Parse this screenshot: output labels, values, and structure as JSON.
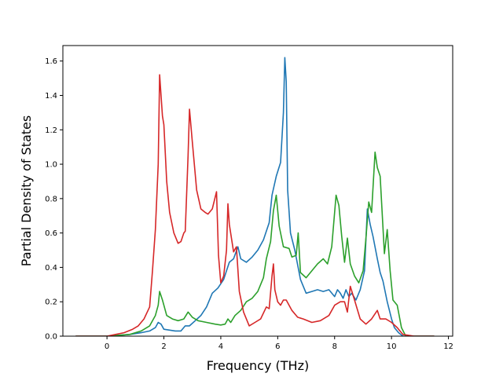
{
  "chart_data": {
    "type": "line",
    "title": "",
    "xlabel": "Frequency (THz)",
    "ylabel": "Partial Density of States",
    "xlim": [
      -1.55,
      12.15
    ],
    "ylim": [
      0.0,
      1.69
    ],
    "xticks": [
      0,
      2,
      4,
      6,
      8,
      10,
      12
    ],
    "yticks": [
      0.0,
      0.2,
      0.4,
      0.6,
      0.8,
      1.0,
      1.2,
      1.4,
      1.6
    ],
    "xtick_labels": [
      "0",
      "2",
      "4",
      "6",
      "8",
      "10",
      "12"
    ],
    "ytick_labels": [
      "0.0",
      "0.2",
      "0.4",
      "0.6",
      "0.8",
      "1.0",
      "1.2",
      "1.4",
      "1.6"
    ],
    "grid": false,
    "legend": "none",
    "series": [
      {
        "color": "#1f77b4",
        "x": [
          -1.1,
          0.0,
          0.4,
          0.8,
          1.2,
          1.5,
          1.7,
          1.8,
          1.9,
          2.0,
          2.2,
          2.4,
          2.6,
          2.75,
          2.9,
          3.1,
          3.3,
          3.5,
          3.7,
          3.9,
          4.1,
          4.2,
          4.3,
          4.45,
          4.6,
          4.7,
          4.9,
          5.1,
          5.3,
          5.5,
          5.7,
          5.8,
          5.95,
          6.1,
          6.2,
          6.25,
          6.3,
          6.35,
          6.45,
          6.6,
          6.8,
          7.0,
          7.2,
          7.4,
          7.6,
          7.8,
          8.0,
          8.1,
          8.2,
          8.3,
          8.4,
          8.5,
          8.6,
          8.75,
          8.9,
          9.05,
          9.15,
          9.25,
          9.35,
          9.5,
          9.6,
          9.7,
          9.85,
          10.0,
          10.1,
          10.25,
          10.4,
          10.8,
          11.5
        ],
        "y": [
          0.0,
          0.0,
          0.005,
          0.01,
          0.02,
          0.03,
          0.05,
          0.08,
          0.07,
          0.04,
          0.035,
          0.03,
          0.03,
          0.06,
          0.06,
          0.09,
          0.12,
          0.17,
          0.25,
          0.28,
          0.33,
          0.38,
          0.43,
          0.45,
          0.52,
          0.45,
          0.43,
          0.46,
          0.5,
          0.56,
          0.66,
          0.82,
          0.93,
          1.01,
          1.3,
          1.62,
          1.48,
          0.85,
          0.6,
          0.5,
          0.33,
          0.25,
          0.26,
          0.27,
          0.26,
          0.27,
          0.23,
          0.27,
          0.25,
          0.22,
          0.27,
          0.23,
          0.25,
          0.21,
          0.27,
          0.38,
          0.74,
          0.65,
          0.58,
          0.45,
          0.37,
          0.32,
          0.2,
          0.1,
          0.05,
          0.02,
          0.0,
          0.0,
          0.0
        ]
      },
      {
        "color": "#2ca02c",
        "x": [
          -1.1,
          0.0,
          0.4,
          0.8,
          1.2,
          1.5,
          1.7,
          1.8,
          1.85,
          1.95,
          2.1,
          2.3,
          2.5,
          2.7,
          2.85,
          3.0,
          3.2,
          3.5,
          3.8,
          4.0,
          4.15,
          4.25,
          4.35,
          4.5,
          4.7,
          4.9,
          5.1,
          5.3,
          5.5,
          5.6,
          5.75,
          5.85,
          5.95,
          6.05,
          6.2,
          6.4,
          6.5,
          6.65,
          6.72,
          6.8,
          7.0,
          7.2,
          7.4,
          7.6,
          7.75,
          7.9,
          8.05,
          8.15,
          8.25,
          8.35,
          8.45,
          8.55,
          8.7,
          8.85,
          9.0,
          9.1,
          9.2,
          9.3,
          9.42,
          9.5,
          9.6,
          9.75,
          9.85,
          9.95,
          10.05,
          10.2,
          10.35,
          10.5,
          11.5
        ],
        "y": [
          0.0,
          0.0,
          0.005,
          0.01,
          0.03,
          0.06,
          0.12,
          0.18,
          0.26,
          0.21,
          0.12,
          0.1,
          0.09,
          0.1,
          0.14,
          0.11,
          0.09,
          0.08,
          0.07,
          0.065,
          0.07,
          0.1,
          0.08,
          0.12,
          0.15,
          0.2,
          0.22,
          0.26,
          0.34,
          0.45,
          0.55,
          0.73,
          0.82,
          0.64,
          0.52,
          0.51,
          0.46,
          0.47,
          0.6,
          0.37,
          0.34,
          0.38,
          0.42,
          0.45,
          0.42,
          0.52,
          0.82,
          0.76,
          0.58,
          0.43,
          0.57,
          0.42,
          0.35,
          0.31,
          0.38,
          0.57,
          0.78,
          0.72,
          1.07,
          0.98,
          0.93,
          0.48,
          0.62,
          0.38,
          0.21,
          0.18,
          0.05,
          0.0,
          0.0
        ]
      },
      {
        "color": "#d62728",
        "x": [
          -1.1,
          0.0,
          0.3,
          0.6,
          0.9,
          1.1,
          1.3,
          1.5,
          1.6,
          1.7,
          1.8,
          1.85,
          1.95,
          2.0,
          2.1,
          2.2,
          2.35,
          2.5,
          2.6,
          2.7,
          2.75,
          2.85,
          2.9,
          3.0,
          3.15,
          3.3,
          3.45,
          3.55,
          3.7,
          3.85,
          3.92,
          4.0,
          4.1,
          4.2,
          4.25,
          4.3,
          4.45,
          4.55,
          4.65,
          4.8,
          5.0,
          5.2,
          5.4,
          5.6,
          5.7,
          5.8,
          5.85,
          5.9,
          6.0,
          6.1,
          6.2,
          6.3,
          6.5,
          6.7,
          6.9,
          7.2,
          7.5,
          7.8,
          8.0,
          8.2,
          8.35,
          8.45,
          8.55,
          8.7,
          8.9,
          9.1,
          9.3,
          9.5,
          9.6,
          9.8,
          10.0,
          10.2,
          10.4,
          10.8,
          11.5
        ],
        "y": [
          0.0,
          0.0,
          0.01,
          0.02,
          0.04,
          0.06,
          0.1,
          0.17,
          0.38,
          0.62,
          1.0,
          1.52,
          1.28,
          1.23,
          0.9,
          0.72,
          0.6,
          0.54,
          0.55,
          0.6,
          0.61,
          1.05,
          1.32,
          1.13,
          0.85,
          0.74,
          0.72,
          0.71,
          0.74,
          0.84,
          0.47,
          0.31,
          0.35,
          0.5,
          0.77,
          0.65,
          0.49,
          0.52,
          0.26,
          0.14,
          0.06,
          0.08,
          0.1,
          0.17,
          0.16,
          0.35,
          0.42,
          0.27,
          0.2,
          0.18,
          0.21,
          0.21,
          0.15,
          0.11,
          0.1,
          0.08,
          0.09,
          0.12,
          0.18,
          0.2,
          0.2,
          0.14,
          0.29,
          0.21,
          0.1,
          0.07,
          0.1,
          0.15,
          0.1,
          0.1,
          0.08,
          0.05,
          0.01,
          0.0,
          0.0
        ]
      }
    ]
  }
}
